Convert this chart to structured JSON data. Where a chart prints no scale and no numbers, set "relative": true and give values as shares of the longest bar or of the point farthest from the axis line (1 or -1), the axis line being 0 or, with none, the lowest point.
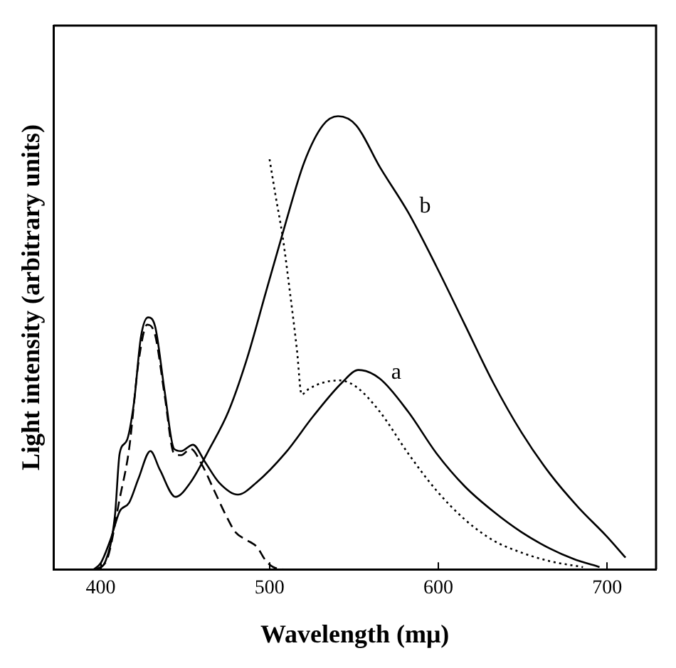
{
  "chart_data": {
    "type": "line",
    "relative": true,
    "xlabel": "Wavelength (mμ)",
    "ylabel": "Light intensity (arbitrary units)",
    "xlim": [
      372,
      729
    ],
    "xticks": [
      400,
      500,
      600,
      700
    ],
    "grid": false,
    "legend": false,
    "marker": "none",
    "series": [
      {
        "name": "b",
        "color": "#000000",
        "line_style": "solid",
        "x": [
          395.8,
          400,
          405.6,
          411.2,
          416.8,
          422.4,
          429.4,
          435,
          444.3,
          453.2,
          464.4,
          475.6,
          486.8,
          498,
          509.2,
          520.4,
          531.6,
          540.6,
          551.3,
          565.3,
          582.1,
          598.9,
          615.7,
          632.5,
          649.3,
          666.1,
          682.9,
          699.7,
          710.9
        ],
        "values": [
          0,
          0.014,
          0.064,
          0.128,
          0.147,
          0.201,
          0.261,
          0.22,
          0.16,
          0.192,
          0.266,
          0.348,
          0.467,
          0.614,
          0.76,
          0.897,
          0.98,
          1,
          0.98,
          0.888,
          0.788,
          0.668,
          0.54,
          0.412,
          0.302,
          0.211,
          0.137,
          0.073,
          0.026
        ]
      },
      {
        "name": "a",
        "color": "#000000",
        "line_style": "solid",
        "x": [
          397.2,
          402.8,
          408.4,
          411.2,
          415.4,
          419.6,
          423.8,
          428,
          432.2,
          437.8,
          443.4,
          447.6,
          454.6,
          461.6,
          470,
          481.2,
          492.4,
          509.2,
          526.1,
          542.9,
          552.7,
          565.3,
          582.1,
          598.9,
          615.7,
          632.5,
          649.3,
          666.1,
          680.1,
          695.5
        ],
        "values": [
          0,
          0.018,
          0.119,
          0.256,
          0.284,
          0.366,
          0.513,
          0.556,
          0.536,
          0.394,
          0.266,
          0.261,
          0.275,
          0.238,
          0.192,
          0.165,
          0.192,
          0.256,
          0.339,
          0.412,
          0.44,
          0.421,
          0.348,
          0.256,
          0.183,
          0.128,
          0.082,
          0.046,
          0.023,
          0.005
        ]
      },
      {
        "color": "#000000",
        "line_style": "dashed",
        "x": [
          398.6,
          404.2,
          411.2,
          416.8,
          422.4,
          427.5,
          432.2,
          437.8,
          443.4,
          447.6,
          453.2,
          460.2,
          467.2,
          474.2,
          479.8,
          486.8,
          492.4,
          498,
          502.2,
          507.8
        ],
        "values": [
          0,
          0.027,
          0.156,
          0.266,
          0.458,
          0.54,
          0.517,
          0.385,
          0.256,
          0.252,
          0.266,
          0.229,
          0.174,
          0.119,
          0.082,
          0.064,
          0.05,
          0.018,
          0.005,
          0
        ]
      },
      {
        "color": "#000000",
        "line_style": "dotted",
        "x": [
          500,
          503.6,
          507.8,
          512,
          516.2,
          519,
          523.2,
          531.6,
          541.5,
          551.3,
          565.3,
          582.1,
          598.9,
          615.7,
          632.5,
          649.3,
          666.1,
          685.7
        ],
        "values": [
          0.905,
          0.824,
          0.733,
          0.614,
          0.485,
          0.386,
          0.398,
          0.412,
          0.417,
          0.403,
          0.348,
          0.256,
          0.174,
          0.11,
          0.064,
          0.037,
          0.018,
          0.005
        ]
      }
    ]
  }
}
